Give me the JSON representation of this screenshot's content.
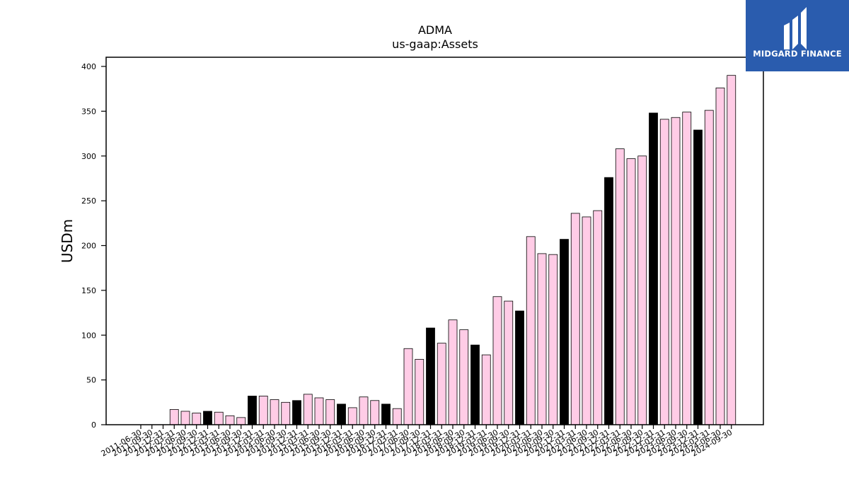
{
  "chart_data": {
    "type": "bar",
    "title": "ADMA",
    "subtitle": "us-gaap:Assets",
    "ylabel": "USDm",
    "xlabel": "",
    "ylim": [
      0,
      410
    ],
    "yticks": [
      0,
      50,
      100,
      150,
      200,
      250,
      300,
      350,
      400
    ],
    "grid": false,
    "colors": {
      "annual": "#000000",
      "quarterly": "#ffcce6",
      "edge": "#000000"
    },
    "categories": [
      "2011-06-30",
      "2011-09-30",
      "2011-12-31",
      "2012-03-31",
      "2012-06-30",
      "2012-09-30",
      "2012-12-31",
      "2013-03-31",
      "2013-06-30",
      "2013-09-30",
      "2013-12-31",
      "2014-03-31",
      "2014-06-30",
      "2014-09-30",
      "2014-12-31",
      "2015-03-31",
      "2015-06-30",
      "2015-09-30",
      "2015-12-31",
      "2016-03-31",
      "2016-06-30",
      "2016-09-30",
      "2016-12-31",
      "2017-03-31",
      "2017-06-30",
      "2017-09-30",
      "2017-12-31",
      "2018-03-31",
      "2018-06-30",
      "2018-09-30",
      "2018-12-31",
      "2019-03-31",
      "2019-06-30",
      "2019-09-30",
      "2019-12-31",
      "2020-03-31",
      "2020-06-30",
      "2020-09-30",
      "2020-12-31",
      "2021-03-31",
      "2021-06-30",
      "2021-09-30",
      "2021-12-31",
      "2022-03-31",
      "2022-06-30",
      "2022-09-30",
      "2022-12-31",
      "2023-03-31",
      "2023-06-30",
      "2023-09-30",
      "2023-12-31",
      "2024-03-31",
      "2024-06-30",
      "2024-09-30"
    ],
    "values": [
      0,
      0,
      0,
      17,
      15,
      13,
      15,
      14,
      10,
      8,
      32,
      32,
      28,
      25,
      27,
      34,
      30,
      28,
      23,
      19,
      31,
      27,
      23,
      18,
      85,
      73,
      108,
      91,
      117,
      106,
      89,
      78,
      143,
      138,
      127,
      210,
      191,
      190,
      207,
      236,
      232,
      239,
      276,
      308,
      297,
      300,
      348,
      341,
      343,
      349,
      329,
      351,
      376,
      390
    ],
    "annual": [
      false,
      false,
      false,
      false,
      false,
      false,
      true,
      false,
      false,
      false,
      true,
      false,
      false,
      false,
      true,
      false,
      false,
      false,
      true,
      false,
      false,
      false,
      true,
      false,
      false,
      false,
      true,
      false,
      false,
      false,
      true,
      false,
      false,
      false,
      true,
      false,
      false,
      false,
      true,
      false,
      false,
      false,
      true,
      false,
      false,
      false,
      true,
      false,
      false,
      false,
      true,
      false,
      false,
      false
    ]
  },
  "logo": {
    "text": "MIDGARD FINANCE"
  }
}
